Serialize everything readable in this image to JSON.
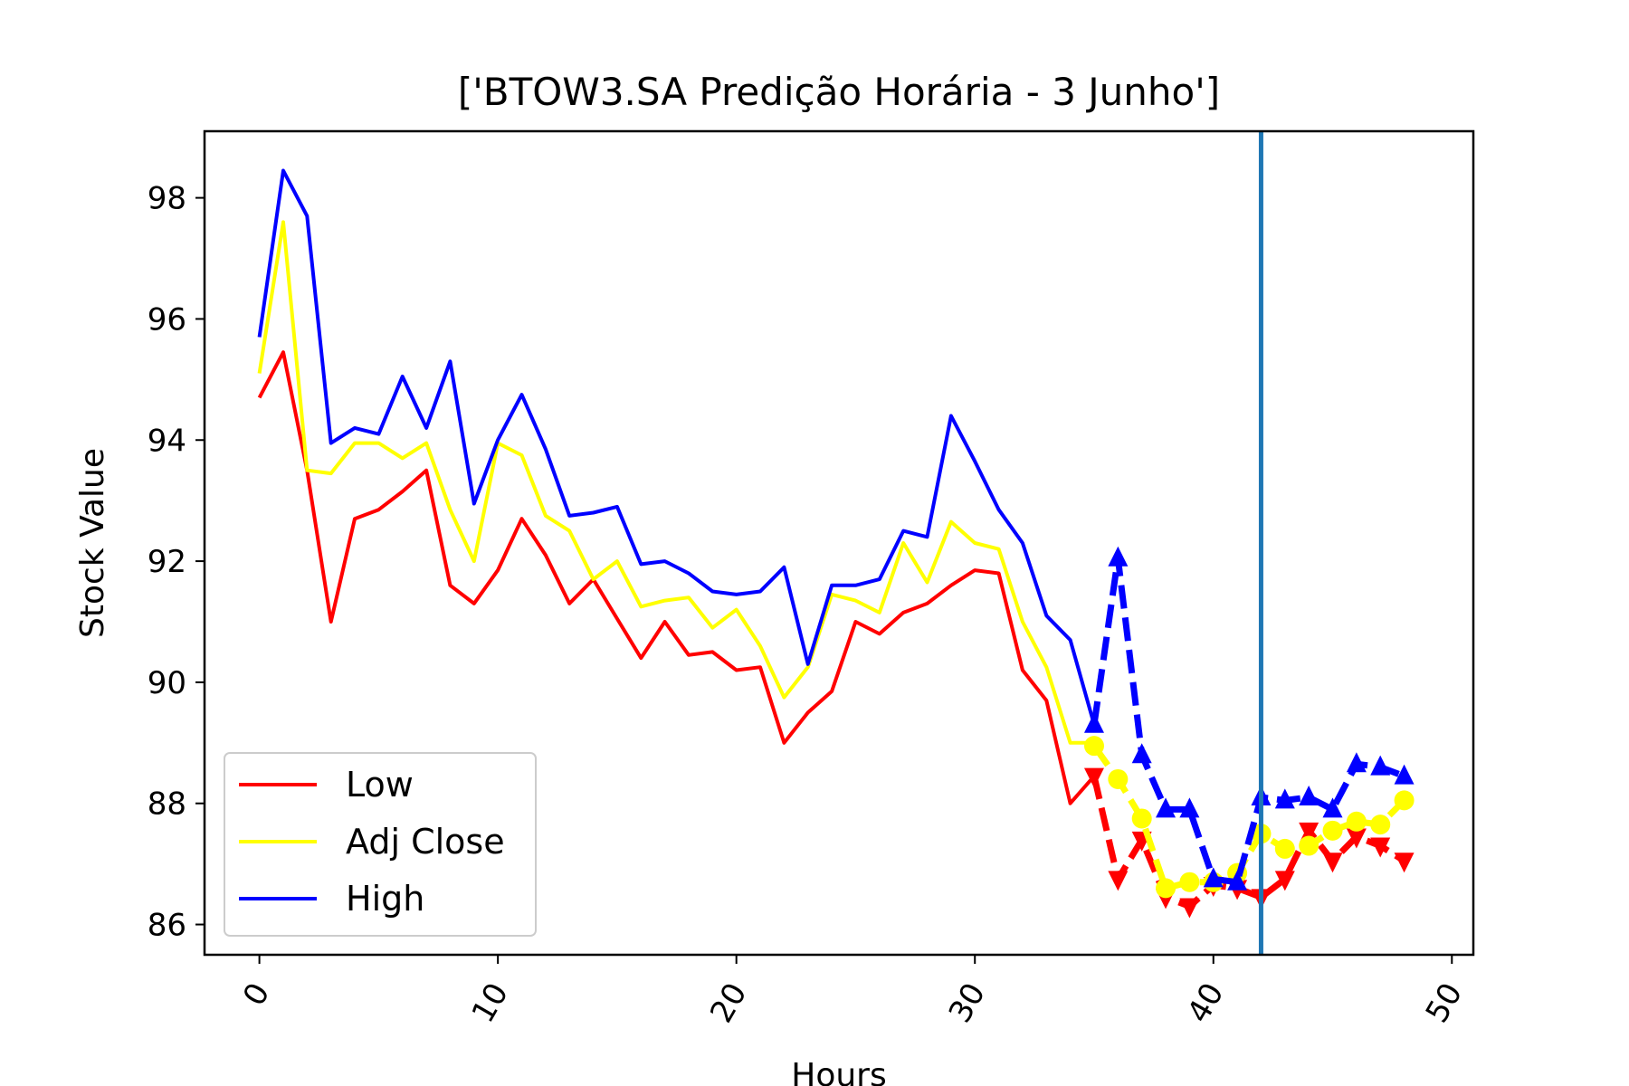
{
  "chart_data": {
    "type": "line",
    "title": "['BTOW3.SA Predição Horária - 3 Junho']",
    "xlabel": "Hours",
    "ylabel": "Stock Value",
    "xlim": [
      -2.3,
      50.9
    ],
    "ylim": [
      85.5,
      99.1
    ],
    "xticks": [
      0,
      10,
      20,
      30,
      40,
      50
    ],
    "yticks": [
      86,
      88,
      90,
      92,
      94,
      96,
      98
    ],
    "xtick_rotation": -60,
    "vline_x": 42,
    "vline_color": "#1f77b4",
    "legend_position": "lower-left",
    "legend": [
      {
        "label": "Low",
        "color": "#ff0000"
      },
      {
        "label": "Adj Close",
        "color": "#ffff00"
      },
      {
        "label": "High",
        "color": "#0000ff"
      }
    ],
    "series": [
      {
        "name": "Low",
        "color": "#ff0000",
        "x": [
          0,
          1,
          2,
          3,
          4,
          5,
          6,
          7,
          8,
          9,
          10,
          11,
          12,
          13,
          14,
          15,
          16,
          17,
          18,
          19,
          20,
          21,
          22,
          23,
          24,
          25,
          26,
          27,
          28,
          29,
          30,
          31,
          32,
          33,
          34,
          35
        ],
        "values": [
          94.7,
          95.45,
          93.5,
          91.0,
          92.7,
          92.85,
          93.15,
          93.5,
          91.6,
          91.3,
          91.85,
          92.7,
          92.1,
          91.3,
          91.7,
          91.05,
          90.4,
          91.0,
          90.45,
          90.5,
          90.2,
          90.25,
          89.0,
          89.5,
          89.85,
          91.0,
          90.8,
          91.15,
          91.3,
          91.6,
          91.85,
          91.8,
          90.2,
          89.7,
          88.0,
          88.45
        ],
        "pred_x": [
          35,
          36,
          37,
          38,
          39,
          40,
          41,
          42,
          43,
          44,
          45,
          46,
          47,
          48
        ],
        "pred_values": [
          88.45,
          86.75,
          87.4,
          86.45,
          86.3,
          86.65,
          86.6,
          86.45,
          86.75,
          87.55,
          87.05,
          87.45,
          87.3,
          87.05
        ],
        "pred_marker": "triangle-down"
      },
      {
        "name": "Adj Close",
        "color": "#ffff00",
        "x": [
          0,
          1,
          2,
          3,
          4,
          5,
          6,
          7,
          8,
          9,
          10,
          11,
          12,
          13,
          14,
          15,
          16,
          17,
          18,
          19,
          20,
          21,
          22,
          23,
          24,
          25,
          26,
          27,
          28,
          29,
          30,
          31,
          32,
          33,
          34,
          35
        ],
        "values": [
          95.1,
          97.6,
          93.5,
          93.45,
          93.95,
          93.95,
          93.7,
          93.95,
          92.85,
          92.0,
          93.95,
          93.75,
          92.75,
          92.5,
          91.7,
          92.0,
          91.25,
          91.35,
          91.4,
          90.9,
          91.2,
          90.6,
          89.75,
          90.25,
          91.45,
          91.35,
          91.15,
          92.3,
          91.65,
          92.65,
          92.3,
          92.2,
          91.0,
          90.25,
          89.0,
          89.0
        ],
        "pred_x": [
          35,
          36,
          37,
          38,
          39,
          40,
          41,
          42,
          43,
          44,
          45,
          46,
          47,
          48
        ],
        "pred_values": [
          88.95,
          88.4,
          87.75,
          86.6,
          86.7,
          86.7,
          86.85,
          87.5,
          87.25,
          87.3,
          87.55,
          87.7,
          87.65,
          88.05
        ],
        "pred_marker": "circle"
      },
      {
        "name": "High",
        "color": "#0000ff",
        "x": [
          0,
          1,
          2,
          3,
          4,
          5,
          6,
          7,
          8,
          9,
          10,
          11,
          12,
          13,
          14,
          15,
          16,
          17,
          18,
          19,
          20,
          21,
          22,
          23,
          24,
          25,
          26,
          27,
          28,
          29,
          30,
          31,
          32,
          33,
          34,
          35
        ],
        "values": [
          95.7,
          98.45,
          97.7,
          93.95,
          94.2,
          94.1,
          95.05,
          94.2,
          95.3,
          92.95,
          94.0,
          94.75,
          93.85,
          92.75,
          92.8,
          92.9,
          91.95,
          92.0,
          91.8,
          91.5,
          91.45,
          91.5,
          91.9,
          90.3,
          91.6,
          91.6,
          91.7,
          92.5,
          92.4,
          94.4,
          93.65,
          92.85,
          92.3,
          91.1,
          90.7,
          89.3
        ],
        "pred_x": [
          35,
          36,
          37,
          38,
          39,
          40,
          41,
          42,
          43,
          44,
          45,
          46,
          47,
          48
        ],
        "pred_values": [
          89.3,
          92.05,
          88.8,
          87.9,
          87.9,
          86.75,
          86.7,
          88.1,
          88.05,
          88.1,
          87.9,
          88.65,
          88.6,
          88.45
        ],
        "pred_marker": "triangle-up"
      }
    ]
  }
}
